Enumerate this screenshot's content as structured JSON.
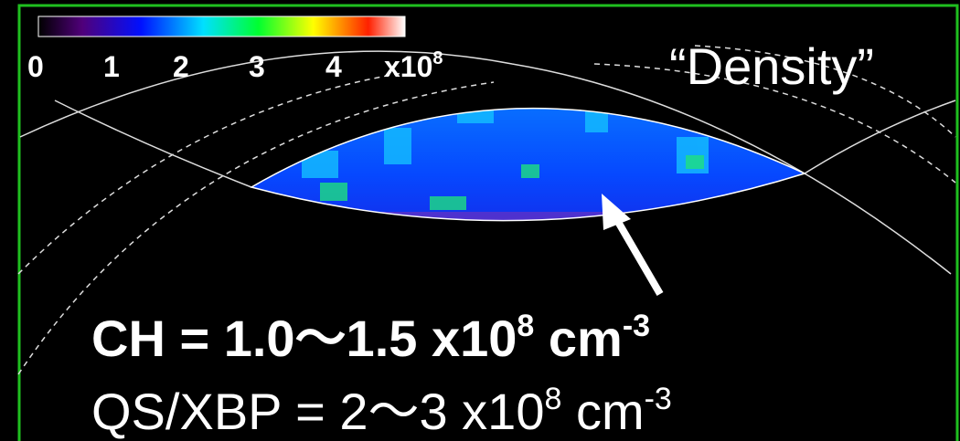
{
  "colorbar": {
    "ticks": [
      "0",
      "1",
      "2",
      "3",
      "4"
    ],
    "multiplier": "x10",
    "exponent": "8"
  },
  "label": "“Density”",
  "annotations": [
    {
      "text": "CH  =  1.0～1.5 x10",
      "exponent": "8",
      "unit": " cm",
      "unit_exponent": "-3"
    },
    {
      "text": "QS/XBP = 2～3 x10",
      "exponent": "8",
      "unit": " cm",
      "unit_exponent": "-3"
    }
  ]
}
